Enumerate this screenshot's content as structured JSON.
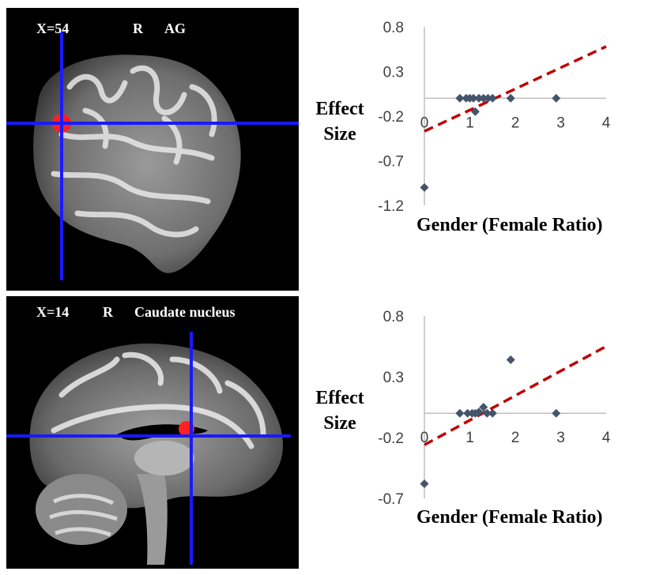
{
  "panels": [
    {
      "coord_label": "X=54",
      "hemisphere": "R",
      "region": "AG"
    },
    {
      "coord_label": "X=14",
      "hemisphere": "R",
      "region": "Caudate nucleus"
    }
  ],
  "colors": {
    "crosshair": "#1a1aff",
    "roi": "#ff2020",
    "marker": "#44546a",
    "trendline": "#c00000",
    "axis": "#bfbfbf"
  },
  "chart_data": [
    {
      "type": "scatter",
      "title": "",
      "xlabel": "Gender (Female Ratio)",
      "ylabel": "Effect Size",
      "xlim": [
        0,
        4
      ],
      "ylim": [
        -1.2,
        0.8
      ],
      "yticks": [
        "0.8",
        "0.3",
        "-0.2",
        "-0.7",
        "-1.2"
      ],
      "ytick_values": [
        0.8,
        0.3,
        -0.2,
        -0.7,
        -1.2
      ],
      "xticks": [
        "0",
        "1",
        "2",
        "3",
        "4"
      ],
      "xtick_values": [
        0,
        1,
        2,
        3,
        4
      ],
      "points": [
        {
          "x": 0,
          "y": -1.0
        },
        {
          "x": 0.78,
          "y": 0
        },
        {
          "x": 0.92,
          "y": 0
        },
        {
          "x": 1.0,
          "y": 0
        },
        {
          "x": 1.08,
          "y": 0
        },
        {
          "x": 1.12,
          "y": -0.15
        },
        {
          "x": 1.2,
          "y": 0
        },
        {
          "x": 1.3,
          "y": 0
        },
        {
          "x": 1.4,
          "y": 0
        },
        {
          "x": 1.5,
          "y": 0
        },
        {
          "x": 1.9,
          "y": 0
        },
        {
          "x": 2.9,
          "y": 0
        }
      ],
      "trendline": {
        "x0": 0,
        "y0": -0.37,
        "x1": 4,
        "y1": 0.58
      }
    },
    {
      "type": "scatter",
      "title": "",
      "xlabel": "Gender (Female Ratio)",
      "ylabel": "Effect Size",
      "xlim": [
        0,
        4
      ],
      "ylim": [
        -0.7,
        0.8
      ],
      "yticks": [
        "0.8",
        "0.3",
        "-0.2",
        "-0.7"
      ],
      "ytick_values": [
        0.8,
        0.3,
        -0.2,
        -0.7
      ],
      "xticks": [
        "0",
        "1",
        "2",
        "3",
        "4"
      ],
      "xtick_values": [
        0,
        1,
        2,
        3,
        4
      ],
      "points": [
        {
          "x": 0,
          "y": -0.58
        },
        {
          "x": 0.78,
          "y": 0
        },
        {
          "x": 0.95,
          "y": 0
        },
        {
          "x": 1.05,
          "y": 0
        },
        {
          "x": 1.12,
          "y": 0
        },
        {
          "x": 1.2,
          "y": 0.01
        },
        {
          "x": 1.3,
          "y": 0.05
        },
        {
          "x": 1.38,
          "y": 0
        },
        {
          "x": 1.5,
          "y": 0
        },
        {
          "x": 1.9,
          "y": 0.44
        },
        {
          "x": 2.9,
          "y": 0
        }
      ],
      "trendline": {
        "x0": 0,
        "y0": -0.26,
        "x1": 4,
        "y1": 0.55
      }
    }
  ]
}
